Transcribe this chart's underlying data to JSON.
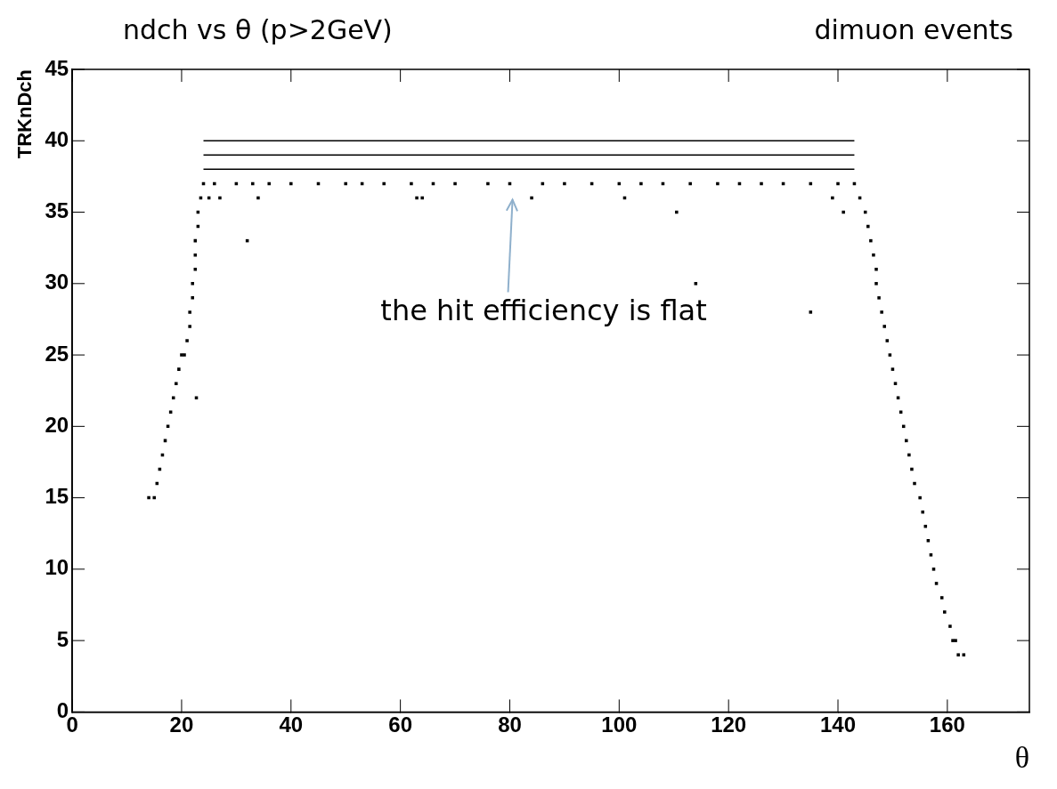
{
  "chart_data": {
    "type": "scatter",
    "title": "ndch vs θ (p>2GeV)",
    "subtitle": "dimuon events",
    "xlabel": "θ",
    "ylabel": "TRKnDch",
    "xlim": [
      0,
      175
    ],
    "xticks": [
      0,
      20,
      40,
      60,
      80,
      100,
      120,
      140,
      160
    ],
    "ylim": [
      0,
      45
    ],
    "yticks": [
      0,
      5,
      10,
      15,
      20,
      25,
      30,
      35,
      40,
      45
    ],
    "grid": false,
    "legend": false,
    "annotations": [
      "the hit efficiency is flat"
    ],
    "series": [
      {
        "type": "scatter",
        "marker": "square",
        "color": "#000000",
        "x": [
          14,
          15,
          15.5,
          16,
          16.5,
          17,
          17.5,
          18,
          18.5,
          19,
          19.5,
          20,
          20.5,
          21,
          21.5,
          21.5,
          22,
          22,
          22.5,
          22.5,
          22.5,
          23,
          23,
          23.5,
          24,
          143,
          144,
          145,
          145.5,
          146,
          146.5,
          147,
          147,
          147.5,
          148,
          148.5,
          149,
          149.5,
          150,
          150.5,
          151,
          151.5,
          152,
          152.5,
          153,
          153.5,
          154,
          155,
          155.5,
          156,
          156.5,
          157,
          157.5,
          158,
          159,
          159.5,
          160.5,
          161,
          161.5,
          162,
          163,
          26,
          30,
          33,
          36,
          40,
          45,
          50,
          53,
          57,
          62,
          66,
          70,
          76,
          80,
          86,
          90,
          95,
          100,
          104,
          108,
          113,
          118,
          122,
          126,
          130,
          135,
          140,
          25,
          27,
          34,
          63,
          64,
          84,
          101,
          139,
          22.7,
          32,
          110.5,
          114,
          135,
          141
        ],
        "values": [
          15,
          15,
          16,
          17,
          18,
          19,
          20,
          21,
          22,
          23,
          24,
          25,
          25,
          26,
          27,
          28,
          29,
          30,
          31,
          32,
          33,
          34,
          35,
          36,
          37,
          37,
          36,
          35,
          34,
          33,
          32,
          31,
          30,
          29,
          28,
          27,
          26,
          25,
          24,
          23,
          22,
          21,
          20,
          19,
          18,
          17,
          16,
          15,
          14,
          13,
          12,
          11,
          10,
          9,
          8,
          7,
          6,
          5,
          5,
          4,
          4,
          37,
          37,
          37,
          37,
          37,
          37,
          37,
          37,
          37,
          37,
          37,
          37,
          37,
          37,
          37,
          37,
          37,
          37,
          37,
          37,
          37,
          37,
          37,
          37,
          37,
          37,
          37,
          36,
          36,
          36,
          36,
          36,
          36,
          36,
          36,
          22,
          33,
          35,
          30,
          28,
          35
        ]
      },
      {
        "type": "line",
        "color": "#000000",
        "x": [
          24,
          143
        ],
        "values": [
          38,
          38
        ]
      },
      {
        "type": "line",
        "color": "#000000",
        "x": [
          24,
          143
        ],
        "values": [
          39,
          39
        ]
      },
      {
        "type": "line",
        "color": "#000000",
        "x": [
          24,
          143
        ],
        "values": [
          40,
          40
        ]
      }
    ]
  }
}
